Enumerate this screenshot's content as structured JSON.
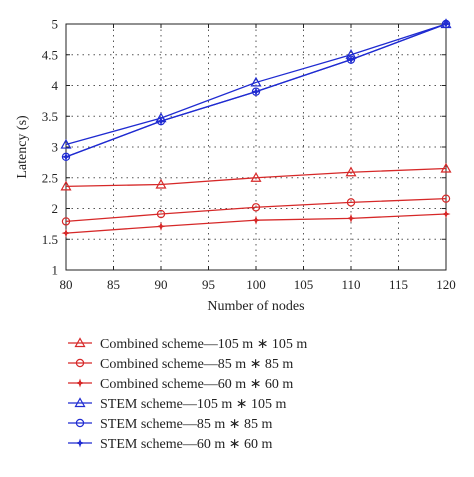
{
  "chart_data": {
    "type": "line",
    "xlabel": "Number of nodes",
    "ylabel": "Latency (s)",
    "x": [
      80,
      90,
      100,
      110,
      120
    ],
    "xlim": [
      80,
      120
    ],
    "ylim": [
      1,
      5
    ],
    "xticks": [
      "80",
      "85",
      "90",
      "95",
      "100",
      "105",
      "110",
      "115",
      "120"
    ],
    "yticks": [
      "1",
      "1.5",
      "2",
      "2.5",
      "3",
      "3.5",
      "4",
      "4.5",
      "5"
    ],
    "grid": true,
    "legend_position": "below",
    "series": [
      {
        "name": "Combined scheme—105 m ∗ 105 m",
        "color": "#d62828",
        "marker": "triangle",
        "values": [
          2.36,
          2.39,
          2.5,
          2.59,
          2.65
        ]
      },
      {
        "name": "Combined scheme—85 m ∗ 85 m",
        "color": "#d62828",
        "marker": "circle",
        "values": [
          1.79,
          1.91,
          2.02,
          2.1,
          2.16
        ]
      },
      {
        "name": "Combined scheme—60 m ∗ 60 m",
        "color": "#d62828",
        "marker": "star",
        "values": [
          1.6,
          1.71,
          1.81,
          1.84,
          1.91
        ]
      },
      {
        "name": "STEM scheme—105 m ∗ 105 m",
        "color": "#1f2bd1",
        "marker": "triangle",
        "values": [
          3.04,
          3.47,
          4.05,
          4.5,
          5.0
        ]
      },
      {
        "name": "STEM scheme—85 m ∗ 85 m",
        "color": "#1f2bd1",
        "marker": "circle",
        "values": [
          2.84,
          3.42,
          3.9,
          4.42,
          5.0
        ]
      },
      {
        "name": "STEM scheme—60 m ∗ 60 m",
        "color": "#1f2bd1",
        "marker": "star",
        "values": [
          2.84,
          3.42,
          3.9,
          4.42,
          5.0
        ]
      }
    ]
  }
}
